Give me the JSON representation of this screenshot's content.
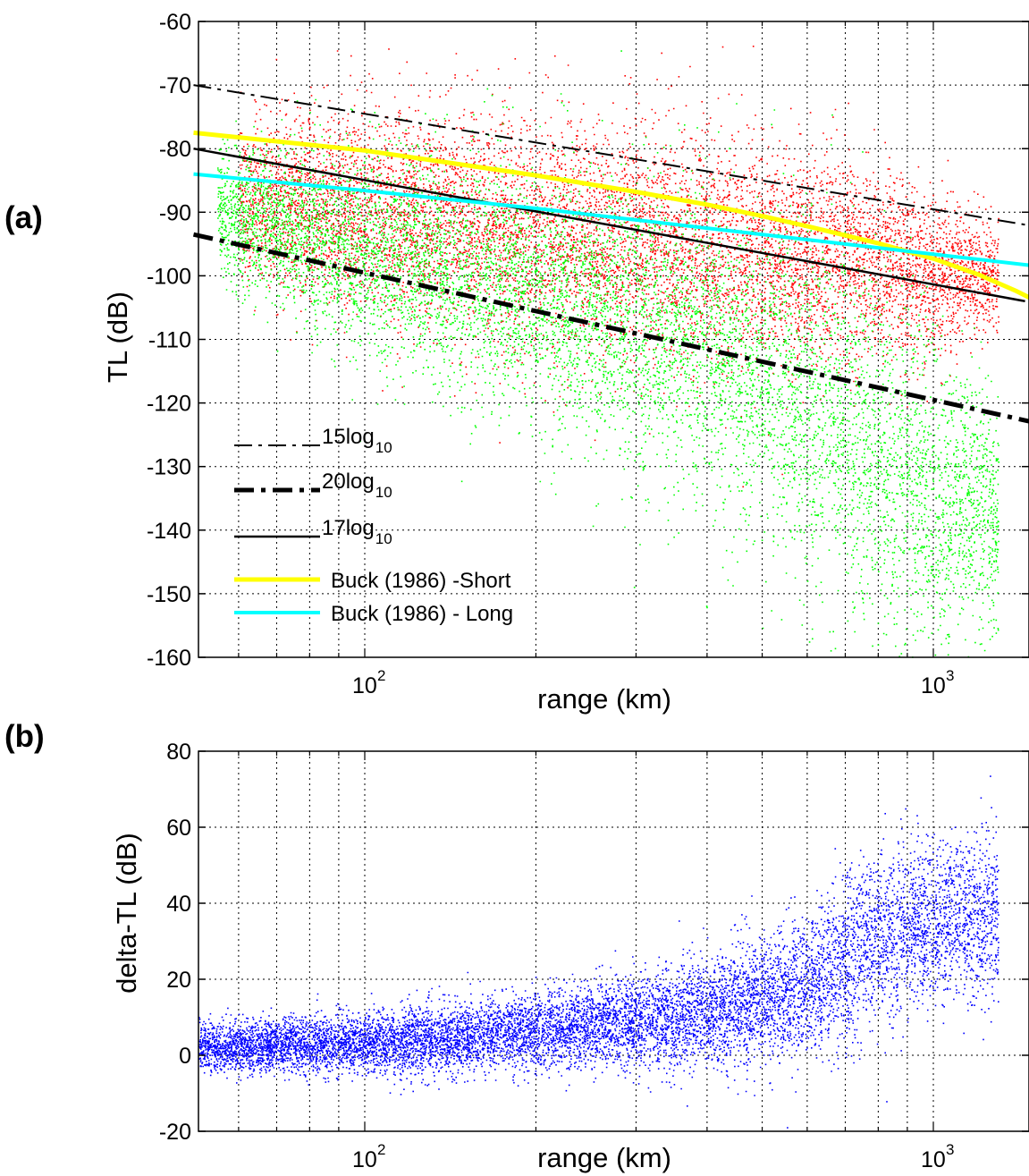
{
  "chart_data": [
    {
      "type": "scatter",
      "panel_label": "(a)",
      "xlabel": "range (km)",
      "ylabel": "TL (dB)",
      "xscale": "log",
      "xlim": [
        50,
        1600
      ],
      "ylim": [
        -160,
        -60
      ],
      "yticks": [
        -60,
        -70,
        -80,
        -90,
        -100,
        -110,
        -120,
        -130,
        -140,
        -150,
        -160
      ],
      "xticks": [
        {
          "value": 100,
          "base": "10",
          "exp": "2"
        },
        {
          "value": 1000,
          "base": "10",
          "exp": "3"
        }
      ],
      "grid": true,
      "legend": {
        "placement": "lower-left",
        "entries": [
          {
            "label_main": "15log",
            "label_sub": "10",
            "style": "dashdot",
            "color": "#000000",
            "width": 2
          },
          {
            "label_main": "20log",
            "label_sub": "10",
            "style": "dashdot",
            "color": "#000000",
            "width": 5
          },
          {
            "label_main": "17log",
            "label_sub": "10",
            "style": "solid",
            "color": "#000000",
            "width": 2.5
          },
          {
            "label_main": "Buck (1986) -Short",
            "label_sub": "",
            "style": "solid",
            "color": "#ffff00",
            "width": 5
          },
          {
            "label_main": "Buck (1986) - Long",
            "label_sub": "",
            "style": "solid",
            "color": "#00ffff",
            "width": 4
          }
        ]
      },
      "lines": [
        {
          "name": "15log10",
          "style": "dashdot",
          "color": "#000000",
          "width": 2,
          "x": [
            50,
            1600
          ],
          "y": [
            -70,
            -92.6
          ]
        },
        {
          "name": "20log10",
          "style": "dashdot",
          "color": "#000000",
          "width": 5,
          "x": [
            50,
            1600
          ],
          "y": [
            -93.5,
            -123.6
          ]
        },
        {
          "name": "17log10",
          "style": "solid",
          "color": "#000000",
          "width": 2.5,
          "x": [
            50,
            1450
          ],
          "y": [
            -80,
            -104
          ]
        },
        {
          "name": "Buck (1986) -Short",
          "style": "solid",
          "color": "#ffff00",
          "width": 5,
          "x": [
            50,
            100,
            200,
            300,
            400,
            500,
            600,
            800,
            1000,
            1200,
            1400,
            1600
          ],
          "y": [
            -77.5,
            -80.3,
            -84.2,
            -86.8,
            -88.8,
            -90.6,
            -92.2,
            -94.9,
            -97.3,
            -99.8,
            -102.4,
            -105
          ]
        },
        {
          "name": "Buck (1986) - Long",
          "style": "solid",
          "color": "#00ffff",
          "width": 4,
          "x": [
            50,
            100,
            200,
            400,
            800,
            1600
          ],
          "y": [
            -84,
            -86.6,
            -89.4,
            -92.5,
            -95.6,
            -98.7
          ]
        }
      ],
      "scatter_series": [
        {
          "color": "#ff0000",
          "count": 9000,
          "trend": {
            "x": [
              60,
              100,
              200,
              400,
              700,
              1000,
              1300
            ],
            "center": [
              -88,
              -90,
              -93,
              -96,
              -98,
              -100,
              -100
            ],
            "spread": [
              6,
              8,
              9,
              9,
              8,
              6,
              4
            ]
          }
        },
        {
          "color": "#00ff00",
          "count": 9000,
          "trend": {
            "x": [
              55,
              100,
              200,
              400,
              600,
              800,
              1000,
              1300
            ],
            "center": [
              -90,
              -96,
              -103,
              -111,
              -120,
              -128,
              -135,
              -138
            ],
            "spread": [
              5,
              8,
              10,
              12,
              14,
              14,
              13,
              10
            ]
          }
        }
      ]
    },
    {
      "type": "scatter",
      "panel_label": "(b)",
      "xlabel": "range (km)",
      "ylabel": "delta-TL (dB)",
      "xscale": "log",
      "xlim": [
        50,
        1600
      ],
      "ylim": [
        -20,
        80
      ],
      "yticks": [
        80,
        60,
        40,
        20,
        0,
        -20
      ],
      "xticks": [
        {
          "value": 100,
          "base": "10",
          "exp": "2"
        },
        {
          "value": 1000,
          "base": "10",
          "exp": "3"
        }
      ],
      "grid": true,
      "scatter_series": [
        {
          "color": "#0000ff",
          "count": 11000,
          "trend": {
            "x": [
              50,
              100,
              200,
              300,
              400,
              500,
              600,
              700,
              800,
              1000,
              1300
            ],
            "center": [
              2,
              3,
              6,
              9,
              11,
              14,
              18,
              25,
              32,
              35,
              37
            ],
            "spread": [
              3,
              4,
              5,
              6,
              7,
              8,
              9,
              11,
              11,
              10,
              11
            ]
          }
        }
      ]
    }
  ]
}
